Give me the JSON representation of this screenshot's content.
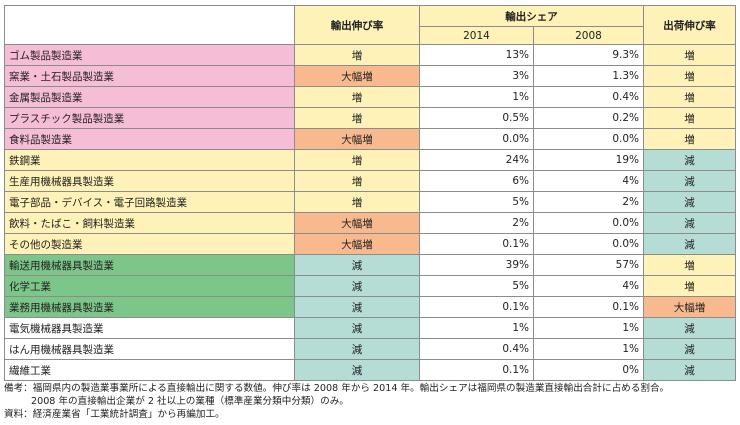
{
  "table": {
    "header": {
      "export_growth": "輸出伸び率",
      "export_share": "輸出シェア",
      "year_2014": "2014",
      "year_2008": "2008",
      "shipment_growth": "出荷伸び率"
    },
    "rows": [
      {
        "industry": "ゴム製品製造業",
        "export_growth": "増",
        "share_2014": "13%",
        "share_2008": "9.3%",
        "shipment_growth": "増"
      },
      {
        "industry": "窯業・土石製品製造業",
        "export_growth": "大幅増",
        "share_2014": "3%",
        "share_2008": "1.3%",
        "shipment_growth": "増"
      },
      {
        "industry": "金属製品製造業",
        "export_growth": "増",
        "share_2014": "1%",
        "share_2008": "0.4%",
        "shipment_growth": "増"
      },
      {
        "industry": "プラスチック製品製造業",
        "export_growth": "増",
        "share_2014": "0.5%",
        "share_2008": "0.2%",
        "shipment_growth": "増"
      },
      {
        "industry": "食料品製造業",
        "export_growth": "大幅増",
        "share_2014": "0.0%",
        "share_2008": "0.0%",
        "shipment_growth": "増"
      },
      {
        "industry": "鉄鋼業",
        "export_growth": "増",
        "share_2014": "24%",
        "share_2008": "19%",
        "shipment_growth": "減"
      },
      {
        "industry": "生産用機械器具製造業",
        "export_growth": "増",
        "share_2014": "6%",
        "share_2008": "4%",
        "shipment_growth": "減"
      },
      {
        "industry": "電子部品・デバイス・電子回路製造業",
        "export_growth": "増",
        "share_2014": "5%",
        "share_2008": "2%",
        "shipment_growth": "減"
      },
      {
        "industry": "飲料・たばこ・飼料製造業",
        "export_growth": "大幅増",
        "share_2014": "2%",
        "share_2008": "0.0%",
        "shipment_growth": "減"
      },
      {
        "industry": "その他の製造業",
        "export_growth": "大幅増",
        "share_2014": "0.1%",
        "share_2008": "0.0%",
        "shipment_growth": "減"
      },
      {
        "industry": "輸送用機械器具製造業",
        "export_growth": "減",
        "share_2014": "39%",
        "share_2008": "57%",
        "shipment_growth": "増"
      },
      {
        "industry": "化学工業",
        "export_growth": "減",
        "share_2014": "5%",
        "share_2008": "4%",
        "shipment_growth": "増"
      },
      {
        "industry": "業務用機械器具製造業",
        "export_growth": "減",
        "share_2014": "0.1%",
        "share_2008": "0.1%",
        "shipment_growth": "大幅増"
      },
      {
        "industry": "電気機械器具製造業",
        "export_growth": "減",
        "share_2014": "1%",
        "share_2008": "1%",
        "shipment_growth": "減"
      },
      {
        "industry": "はん用機械器具製造業",
        "export_growth": "減",
        "share_2014": "0.4%",
        "share_2008": "1%",
        "shipment_growth": "減"
      },
      {
        "industry": "繊維工業",
        "export_growth": "減",
        "share_2014": "0.1%",
        "share_2008": "0%",
        "shipment_growth": "減"
      }
    ]
  },
  "colors": {
    "pink": "#f6bdd6",
    "yellow": "#fff2b8",
    "green": "#7dc689",
    "teal": "#b5ddd6",
    "orange": "#f8b98e",
    "white": "#ffffff"
  },
  "notes": {
    "line1": "備考：福岡県内の製造業事業所による直接輸出に関する数値。伸び率は 2008 年から 2014 年。輸出シェアは福岡県の製造業直接輸出合計に占める割合。",
    "line2": "2008 年の直接輸出企業が 2 社以上の業種（標準産業分類中分類）のみ。",
    "line3": "資料：経済産業省「工業統計調査」から再編加工。"
  }
}
